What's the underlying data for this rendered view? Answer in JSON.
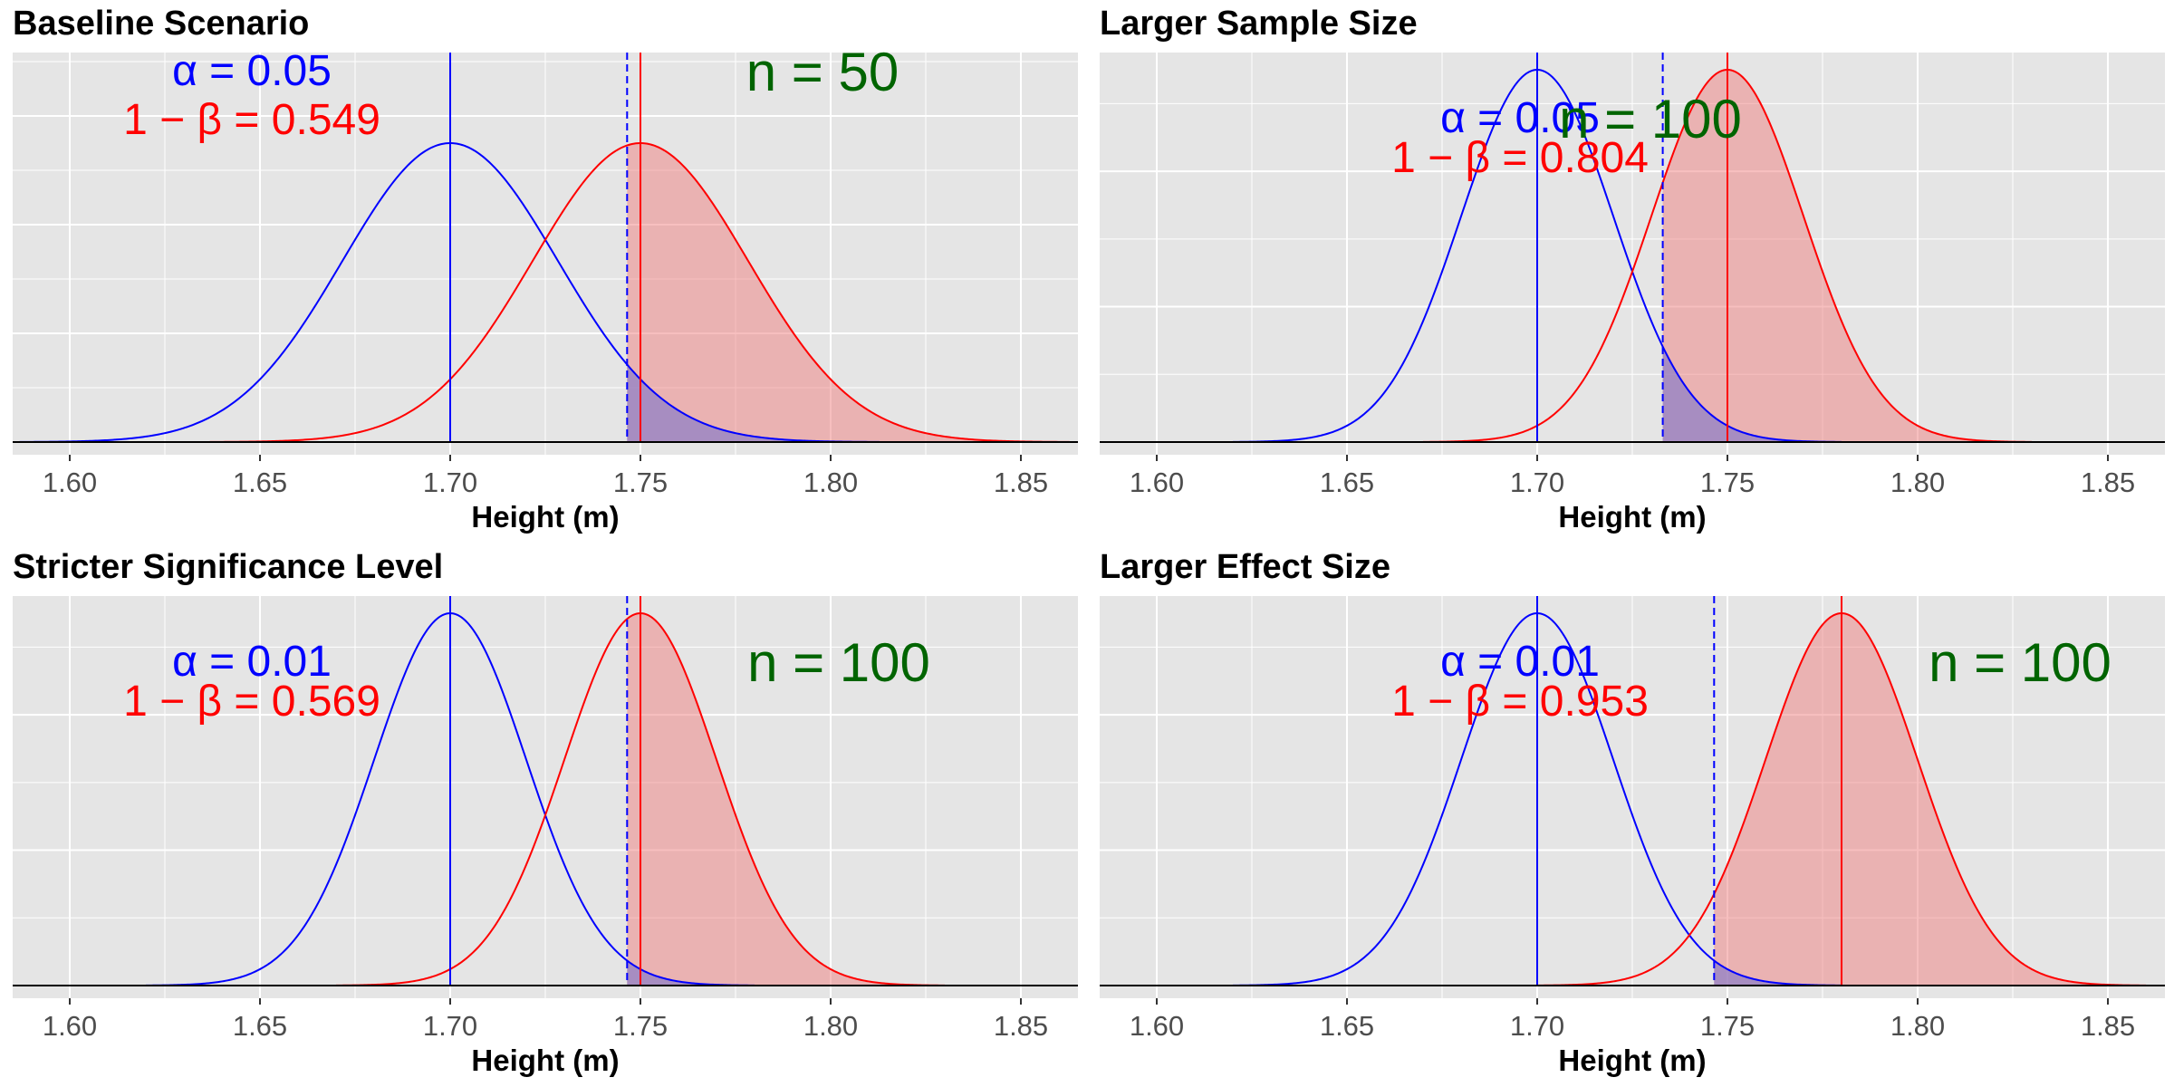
{
  "chart_data": [
    {
      "type": "area",
      "title": "Baseline Scenario",
      "xlabel": "Height (m)",
      "xlim": [
        1.585,
        1.865
      ],
      "x_ticks": [
        "1.60",
        "1.65",
        "1.70",
        "1.75",
        "1.80",
        "1.85"
      ],
      "grid": true,
      "null_distribution": {
        "mean": 1.7,
        "color": "#0000ff"
      },
      "alternative_distribution": {
        "mean": 1.75,
        "color": "#ff0000"
      },
      "critical_value": 1.7465,
      "alpha_label": "α =",
      "alpha_value": "0.05",
      "power_label": "1 − β =",
      "power_value": "0.549",
      "n_label": "n =",
      "n_value": "50"
    },
    {
      "type": "area",
      "title": "Larger Sample Size",
      "xlabel": "Height (m)",
      "xlim": [
        1.585,
        1.865
      ],
      "x_ticks": [
        "1.60",
        "1.65",
        "1.70",
        "1.75",
        "1.80",
        "1.85"
      ],
      "grid": true,
      "null_distribution": {
        "mean": 1.7,
        "color": "#0000ff"
      },
      "alternative_distribution": {
        "mean": 1.75,
        "color": "#ff0000"
      },
      "critical_value": 1.733,
      "alpha_label": "α =",
      "alpha_value": "0.05",
      "power_label": "1 − β =",
      "power_value": "0.804",
      "n_label": "n =",
      "n_value": "100"
    },
    {
      "type": "area",
      "title": "Stricter Significance Level",
      "xlabel": "Height (m)",
      "xlim": [
        1.585,
        1.865
      ],
      "x_ticks": [
        "1.60",
        "1.65",
        "1.70",
        "1.75",
        "1.80",
        "1.85"
      ],
      "grid": true,
      "null_distribution": {
        "mean": 1.7,
        "color": "#0000ff"
      },
      "alternative_distribution": {
        "mean": 1.75,
        "color": "#ff0000"
      },
      "critical_value": 1.7465,
      "alpha_label": "α =",
      "alpha_value": "0.01",
      "power_label": "1 − β =",
      "power_value": "0.569",
      "n_label": "n =",
      "n_value": "100"
    },
    {
      "type": "area",
      "title": "Larger Effect Size",
      "xlabel": "Height (m)",
      "xlim": [
        1.585,
        1.865
      ],
      "x_ticks": [
        "1.60",
        "1.65",
        "1.70",
        "1.75",
        "1.80",
        "1.85"
      ],
      "grid": true,
      "null_distribution": {
        "mean": 1.7,
        "color": "#0000ff"
      },
      "alternative_distribution": {
        "mean": 1.78,
        "color": "#ff0000"
      },
      "critical_value": 1.7465,
      "alpha_label": "α =",
      "alpha_value": "0.01",
      "power_label": "1 − β =",
      "power_value": "0.953",
      "n_label": "n =",
      "n_value": "100"
    }
  ],
  "colors": {
    "null": "#0000ff",
    "alternative": "#ff0000",
    "power_fill": "#f08080",
    "overlap_fill": "#8a7ec8",
    "n_text": "#006400",
    "panel_bg": "#e5e5e5",
    "grid": "#ffffff"
  }
}
